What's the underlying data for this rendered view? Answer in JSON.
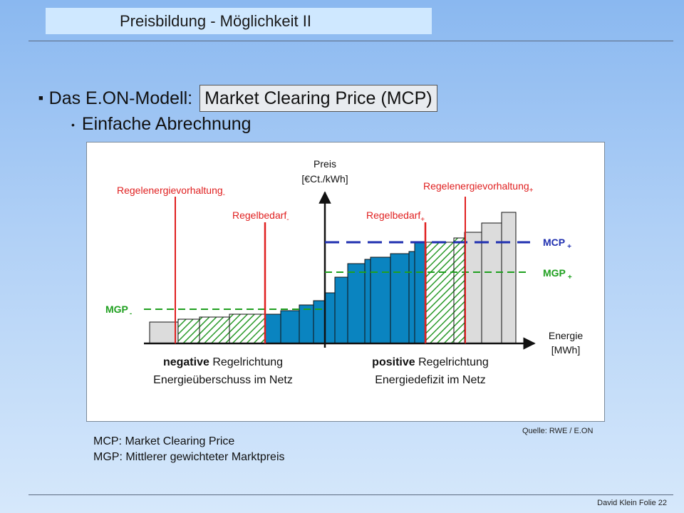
{
  "slide": {
    "title": "Preisbildung - Möglichkeit II",
    "bullet1_prefix": "Das E.ON-Modell:",
    "bullet1_box": "Market Clearing Price (MCP)",
    "bullet2": "Einfache Abrechnung",
    "source": "Quelle:  RWE / E.ON",
    "definitions": [
      "MCP: Market Clearing Price",
      "MGP:  Mittlerer gewichteter Marktpreis"
    ],
    "footer": "David Klein Folie 22"
  },
  "diagram": {
    "y_axis_label": "Preis",
    "y_axis_unit": "[€Ct./kWh]",
    "x_axis_label": "Energie",
    "x_axis_unit": "[MWh]",
    "reserve_neg_label": "Regelenergievorhaltung",
    "reserve_neg_sub": "-",
    "reserve_pos_label": "Regelenergievorhaltung",
    "reserve_pos_sub": "+",
    "demand_neg_label": "Regelbedarf",
    "demand_neg_sub": "-",
    "demand_pos_label": "Regelbedarf",
    "demand_pos_sub": "+",
    "mcp_pos_label": "MCP",
    "mcp_pos_sub": "+",
    "mgp_pos_label": "MGP",
    "mgp_pos_sub": "+",
    "mgp_neg_label": "MGP",
    "mgp_neg_sub": "-",
    "neg_dir_bold": "negative",
    "neg_dir_rest": " Regelrichtung",
    "neg_desc": "Energieüberschuss im Netz",
    "pos_dir_bold": "positive",
    "pos_dir_rest": " Regelrichtung",
    "pos_desc": "Energiedefizit im Netz",
    "colors": {
      "reserve_bar": "#dcdcdc",
      "called_bar": "#0a84c0",
      "hatch": "#2a9a2a",
      "red_line": "#e02020",
      "mcp_line": "#2030b0",
      "mgp_line": "#20a020"
    }
  }
}
